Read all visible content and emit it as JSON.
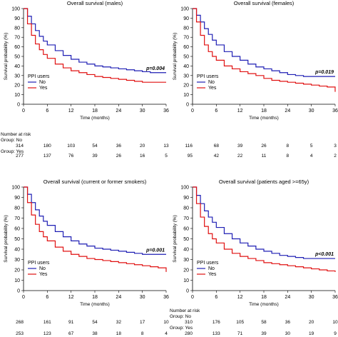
{
  "chart_data": [
    {
      "type": "line",
      "title": "Overall survival (males)",
      "xlabel": "Time (months)",
      "ylabel": "Survival probability (%)",
      "xlim": [
        0,
        36
      ],
      "ylim": [
        0,
        100
      ],
      "xticks": [
        0,
        6,
        12,
        18,
        24,
        30,
        36
      ],
      "yticks": [
        0,
        10,
        20,
        30,
        40,
        50,
        60,
        70,
        80,
        90,
        100
      ],
      "legend": {
        "title": "PPI users",
        "placement": "bottom-left"
      },
      "pvalue": "p=0.004",
      "series": [
        {
          "name": "No",
          "color": "#1f1fb4",
          "x": [
            0,
            1,
            2,
            3,
            4,
            5,
            6,
            8,
            10,
            12,
            14,
            16,
            18,
            20,
            22,
            24,
            26,
            28,
            30,
            32,
            34,
            36
          ],
          "y": [
            100,
            92,
            84,
            77,
            71,
            66,
            62,
            56,
            51,
            47,
            44,
            42,
            40,
            39,
            38,
            37,
            36,
            35,
            34,
            33,
            33,
            33
          ]
        },
        {
          "name": "Yes",
          "color": "#e01010",
          "x": [
            0,
            1,
            2,
            3,
            4,
            5,
            6,
            8,
            10,
            12,
            14,
            16,
            18,
            20,
            22,
            24,
            26,
            28,
            30,
            32,
            34,
            36
          ],
          "y": [
            100,
            84,
            72,
            63,
            57,
            52,
            48,
            42,
            38,
            35,
            33,
            31,
            29,
            28,
            27,
            26,
            25,
            24,
            23,
            23,
            23,
            23
          ]
        }
      ],
      "risk_table": {
        "header": "Number at risk",
        "rows": [
          {
            "label": "Group: No",
            "values": [
              "314",
              "180",
              "103",
              "54",
              "36",
              "20",
              "13"
            ]
          },
          {
            "label": "Group: Yes",
            "values": [
              "277",
              "137",
              "76",
              "39",
              "26",
              "16",
              "5"
            ]
          }
        ]
      }
    },
    {
      "type": "line",
      "title": "Overall survival (females)",
      "xlabel": "Time (months)",
      "ylabel": "Survival probability (%)",
      "xlim": [
        0,
        36
      ],
      "ylim": [
        0,
        100
      ],
      "xticks": [
        0,
        6,
        12,
        18,
        24,
        30,
        36
      ],
      "yticks": [
        0,
        10,
        20,
        30,
        40,
        50,
        60,
        70,
        80,
        90,
        100
      ],
      "legend": {
        "title": "PPI users",
        "placement": "bottom-left"
      },
      "pvalue": "p=0.019",
      "series": [
        {
          "name": "No",
          "color": "#1f1fb4",
          "x": [
            0,
            1,
            2,
            3,
            4,
            5,
            6,
            8,
            10,
            12,
            14,
            16,
            18,
            20,
            22,
            24,
            26,
            28,
            30,
            32,
            34,
            36
          ],
          "y": [
            100,
            93,
            86,
            79,
            73,
            67,
            62,
            55,
            50,
            46,
            42,
            39,
            37,
            35,
            33,
            31,
            30,
            29,
            29,
            29,
            29,
            29
          ]
        },
        {
          "name": "Yes",
          "color": "#e01010",
          "x": [
            0,
            1,
            2,
            3,
            4,
            5,
            6,
            8,
            10,
            12,
            14,
            16,
            18,
            20,
            22,
            24,
            26,
            28,
            30,
            32,
            34,
            36
          ],
          "y": [
            100,
            86,
            72,
            62,
            55,
            50,
            46,
            40,
            37,
            34,
            32,
            30,
            27,
            25,
            24,
            23,
            22,
            21,
            20,
            19,
            18,
            13
          ]
        }
      ],
      "risk_table": {
        "header": "",
        "rows": [
          {
            "label": "",
            "values": [
              "116",
              "68",
              "39",
              "26",
              "8",
              "5",
              "3"
            ]
          },
          {
            "label": "",
            "values": [
              "95",
              "42",
              "22",
              "11",
              "8",
              "4",
              "2"
            ]
          }
        ]
      }
    },
    {
      "type": "line",
      "title": "Overall survival (current or former smokers)",
      "xlabel": "Time (months)",
      "ylabel": "Survival probability (%)",
      "xlim": [
        0,
        36
      ],
      "ylim": [
        0,
        100
      ],
      "xticks": [
        0,
        6,
        12,
        18,
        24,
        30,
        36
      ],
      "yticks": [
        0,
        10,
        20,
        30,
        40,
        50,
        60,
        70,
        80,
        90,
        100
      ],
      "legend": {
        "title": "PPI users",
        "placement": "bottom-left"
      },
      "pvalue": "p=0.001",
      "series": [
        {
          "name": "No",
          "color": "#1f1fb4",
          "x": [
            0,
            1,
            2,
            3,
            4,
            5,
            6,
            8,
            10,
            12,
            14,
            16,
            18,
            20,
            22,
            24,
            26,
            28,
            30,
            32,
            34,
            36
          ],
          "y": [
            100,
            93,
            85,
            78,
            72,
            67,
            63,
            57,
            52,
            48,
            45,
            43,
            41,
            40,
            39,
            38,
            37,
            36,
            35,
            35,
            35,
            35
          ]
        },
        {
          "name": "Yes",
          "color": "#e01010",
          "x": [
            0,
            1,
            2,
            3,
            4,
            5,
            6,
            8,
            10,
            12,
            14,
            16,
            18,
            20,
            22,
            24,
            26,
            28,
            30,
            32,
            34,
            36
          ],
          "y": [
            100,
            85,
            73,
            64,
            57,
            52,
            48,
            42,
            38,
            35,
            33,
            31,
            30,
            29,
            28,
            27,
            26,
            25,
            24,
            23,
            22,
            18
          ]
        }
      ],
      "risk_table": {
        "header": "",
        "rows": [
          {
            "label": "",
            "values": [
              "268",
              "161",
              "91",
              "54",
              "32",
              "17",
              "10"
            ]
          },
          {
            "label": "",
            "values": [
              "253",
              "123",
              "67",
              "38",
              "18",
              "8",
              "4"
            ]
          }
        ]
      }
    },
    {
      "type": "line",
      "title": "Overall survival (patients aged >=65y)",
      "xlabel": "Time (months)",
      "ylabel": "Survival probability (%)",
      "xlim": [
        0,
        36
      ],
      "ylim": [
        0,
        100
      ],
      "xticks": [
        0,
        6,
        12,
        18,
        24,
        30,
        36
      ],
      "yticks": [
        0,
        10,
        20,
        30,
        40,
        50,
        60,
        70,
        80,
        90,
        100
      ],
      "legend": {
        "title": "PPI users",
        "placement": "bottom-left"
      },
      "pvalue": "p<0.001",
      "series": [
        {
          "name": "No",
          "color": "#1f1fb4",
          "x": [
            0,
            1,
            2,
            3,
            4,
            5,
            6,
            8,
            10,
            12,
            14,
            16,
            18,
            20,
            22,
            24,
            26,
            28,
            30,
            32,
            34,
            36
          ],
          "y": [
            100,
            92,
            84,
            77,
            71,
            66,
            61,
            55,
            50,
            46,
            43,
            40,
            38,
            36,
            34,
            33,
            32,
            31,
            31,
            31,
            31,
            31
          ]
        },
        {
          "name": "Yes",
          "color": "#e01010",
          "x": [
            0,
            1,
            2,
            3,
            4,
            5,
            6,
            8,
            10,
            12,
            14,
            16,
            18,
            20,
            22,
            24,
            26,
            28,
            30,
            32,
            34,
            36
          ],
          "y": [
            100,
            84,
            71,
            62,
            55,
            50,
            46,
            40,
            36,
            33,
            31,
            29,
            27,
            26,
            25,
            24,
            23,
            22,
            21,
            20,
            19,
            18
          ]
        }
      ],
      "risk_table": {
        "header": "Number at risk",
        "rows": [
          {
            "label": "Group: No",
            "values": [
              "310",
              "176",
              "105",
              "58",
              "36",
              "20",
              "10"
            ]
          },
          {
            "label": "Group: Yes",
            "values": [
              "280",
              "133",
              "71",
              "39",
              "30",
              "19",
              "9"
            ]
          }
        ]
      }
    }
  ]
}
